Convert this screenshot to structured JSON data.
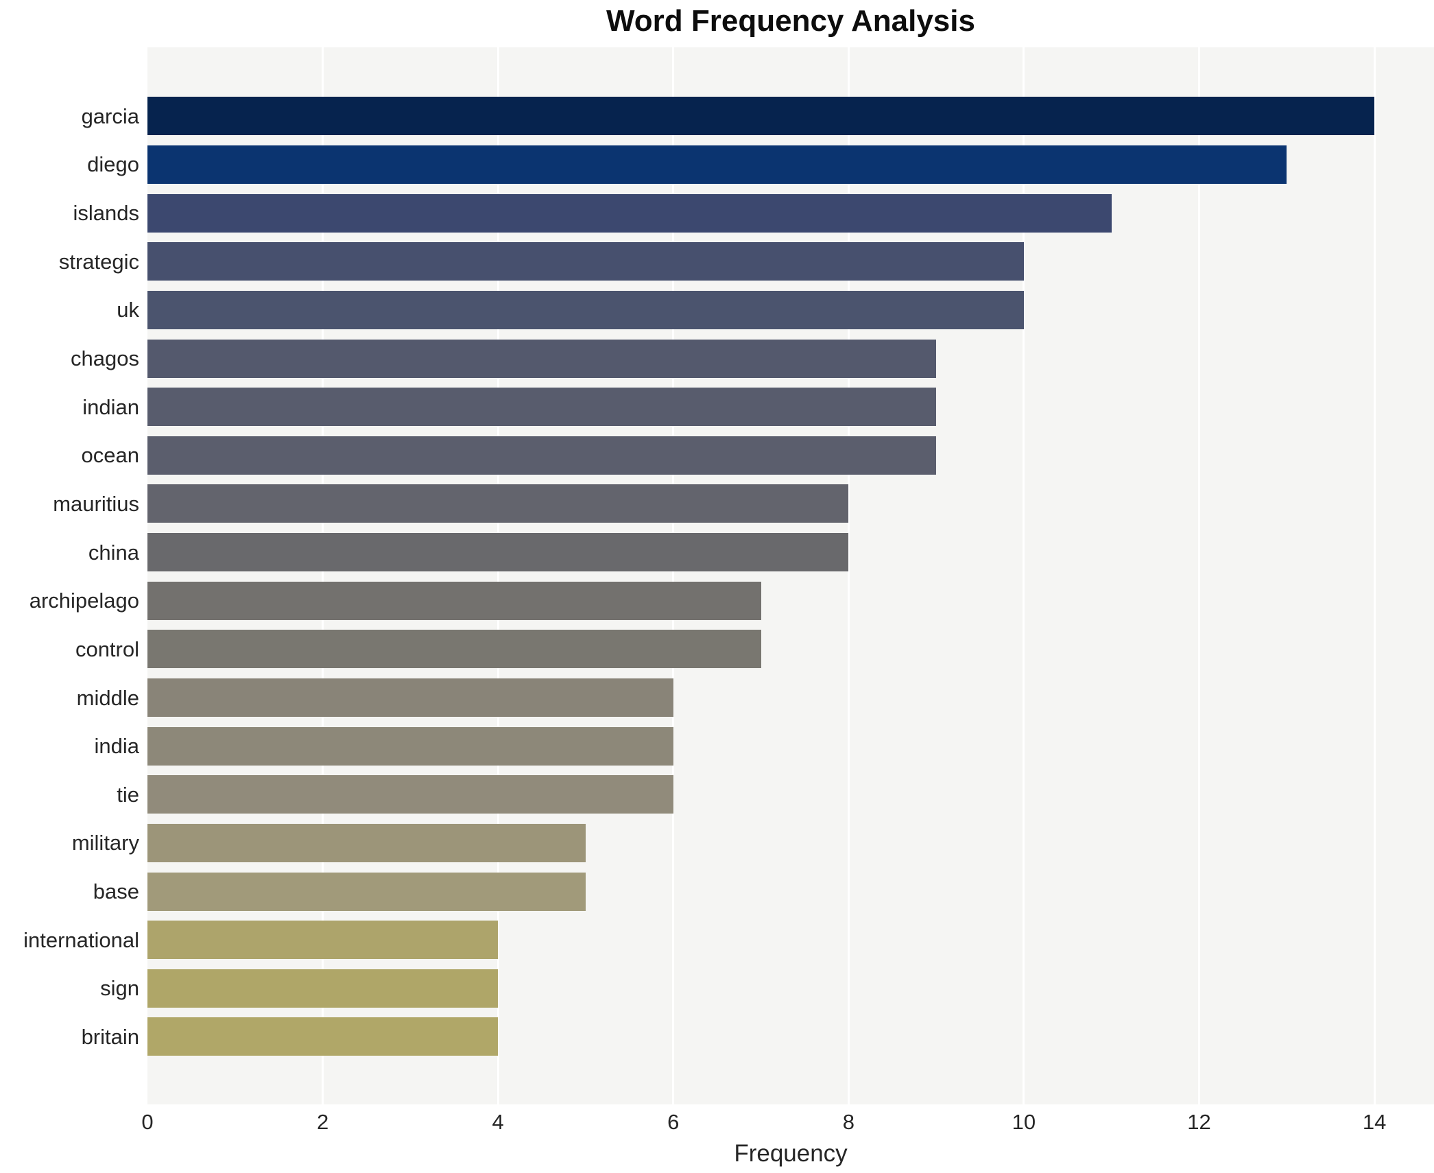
{
  "chart_data": {
    "type": "bar",
    "orientation": "horizontal",
    "title": "Word Frequency Analysis",
    "xlabel": "Frequency",
    "ylabel": "",
    "categories": [
      "garcia",
      "diego",
      "islands",
      "strategic",
      "uk",
      "chagos",
      "indian",
      "ocean",
      "mauritius",
      "china",
      "archipelago",
      "control",
      "middle",
      "india",
      "tie",
      "military",
      "base",
      "international",
      "sign",
      "britain"
    ],
    "values": [
      14,
      13,
      11,
      10,
      10,
      9,
      9,
      9,
      8,
      8,
      7,
      7,
      6,
      6,
      6,
      5,
      5,
      4,
      4,
      4
    ],
    "bar_colors": [
      "#06234e",
      "#0b3470",
      "#3c486f",
      "#47506e",
      "#4b546e",
      "#54596d",
      "#585c6d",
      "#5b5e6d",
      "#63646d",
      "#69696c",
      "#73716e",
      "#797770",
      "#898478",
      "#8d8879",
      "#918b7b",
      "#9c9579",
      "#a19a7a",
      "#ada46b",
      "#afa668",
      "#b0a768"
    ],
    "x_ticks": [
      0,
      2,
      4,
      6,
      8,
      10,
      12,
      14
    ],
    "xlim": [
      0,
      14
    ],
    "x_margin_units": 0.68,
    "grid": "vertical white gridlines at even ticks",
    "legend": "none",
    "plot_bg_color": "#f5f5f3",
    "page_bg_color": "#ffffff",
    "gridline_color": "#ffffff",
    "text_color": "#262626"
  }
}
